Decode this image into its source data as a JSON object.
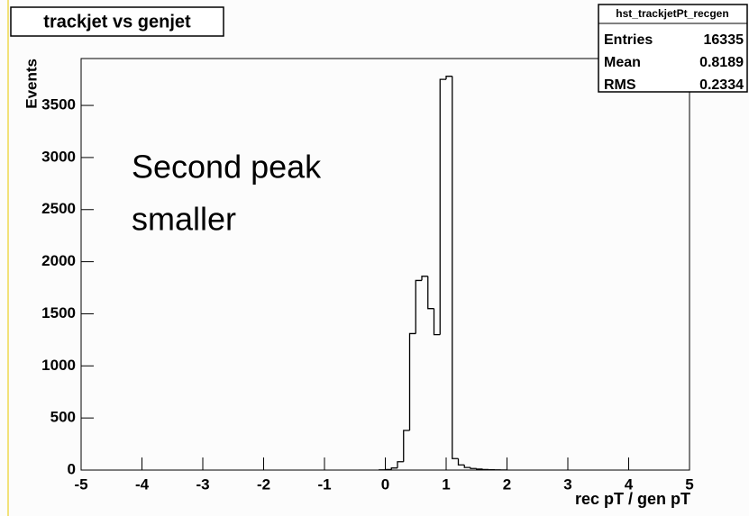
{
  "chart_data": {
    "type": "histogram",
    "title": "trackjet vs genjet",
    "x_label": "rec pT / gen pT",
    "y_label": "Events",
    "annotation": [
      "Second peak",
      "smaller"
    ],
    "bins": [
      -0.1,
      0,
      0.1,
      0.2,
      0.3,
      0.4,
      0.5,
      0.6,
      0.7,
      0.8,
      0.9,
      1.0,
      1.1,
      1.2,
      1.3,
      1.4,
      1.5,
      1.6,
      1.7,
      1.8,
      1.9,
      2.0
    ],
    "values": [
      2,
      5,
      20,
      80,
      380,
      1310,
      1820,
      1860,
      1550,
      1300,
      3750,
      3780,
      110,
      50,
      25,
      15,
      10,
      5,
      3,
      2,
      1
    ],
    "color": "#000000",
    "xlim": [
      -5,
      5
    ],
    "xticks": [
      -5,
      -4,
      -3,
      -2,
      -1,
      0,
      1,
      2,
      3,
      4,
      5
    ],
    "ylim": [
      0,
      3950
    ],
    "yticks": [
      0,
      500,
      1000,
      1500,
      2000,
      2500,
      3000,
      3500
    ],
    "stats": {
      "title": "hst_trackjetPt_recgen",
      "rows": [
        {
          "label": "Entries",
          "value": 16335
        },
        {
          "label": "Mean",
          "value": 0.8189
        },
        {
          "label": "RMS",
          "value": 0.2334
        }
      ]
    }
  }
}
